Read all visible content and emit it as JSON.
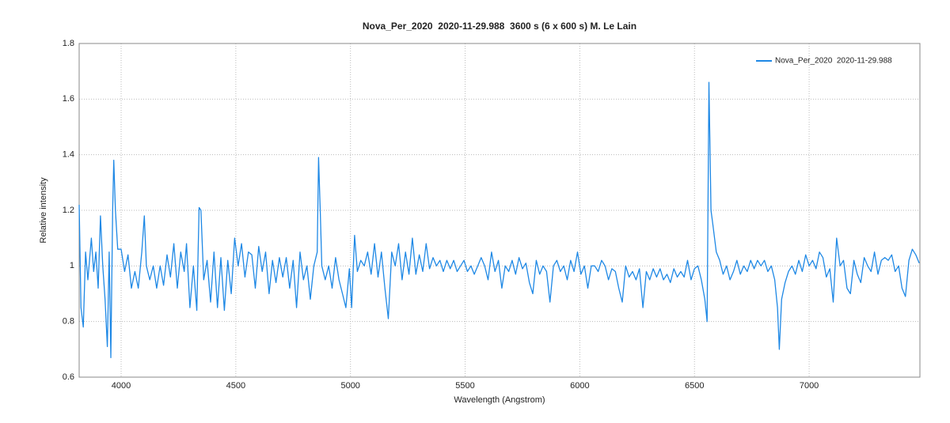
{
  "chart_data": {
    "type": "line",
    "title": "Nova_Per_2020  2020-11-29.988  3600 s (6 x 600 s) M. Le Lain",
    "x_label": "Wavelength (Angstrom)",
    "y_label": "Relative intensity",
    "xlim": [
      3817,
      7483
    ],
    "xticks": [
      4000,
      4500,
      5000,
      5500,
      6000,
      6500,
      7000
    ],
    "ylim": [
      0.6,
      1.8
    ],
    "yticks": [
      0.6,
      0.8,
      1,
      1.2,
      1.4,
      1.6,
      1.8
    ],
    "grid": true,
    "legend": "upper right",
    "x": [
      3817,
      3825,
      3835,
      3845,
      3855,
      3870,
      3880,
      3890,
      3900,
      3910,
      3920,
      3930,
      3940,
      3948,
      3955,
      3963,
      3968,
      3975,
      3985,
      4000,
      4015,
      4030,
      4045,
      4060,
      4075,
      4090,
      4101,
      4110,
      4125,
      4140,
      4155,
      4170,
      4185,
      4200,
      4215,
      4230,
      4245,
      4260,
      4275,
      4285,
      4300,
      4315,
      4330,
      4340,
      4348,
      4360,
      4375,
      4390,
      4405,
      4420,
      4435,
      4450,
      4465,
      4480,
      4495,
      4510,
      4525,
      4540,
      4555,
      4570,
      4585,
      4600,
      4615,
      4630,
      4645,
      4660,
      4675,
      4690,
      4705,
      4720,
      4735,
      4750,
      4765,
      4780,
      4795,
      4810,
      4825,
      4840,
      4855,
      4861,
      4868,
      4875,
      4890,
      4905,
      4920,
      4935,
      4950,
      4965,
      4980,
      4995,
      5005,
      5018,
      5030,
      5045,
      5060,
      5075,
      5090,
      5105,
      5120,
      5135,
      5150,
      5165,
      5180,
      5195,
      5210,
      5225,
      5240,
      5255,
      5270,
      5285,
      5300,
      5315,
      5330,
      5345,
      5360,
      5375,
      5390,
      5405,
      5420,
      5435,
      5450,
      5465,
      5480,
      5495,
      5510,
      5525,
      5540,
      5555,
      5570,
      5585,
      5600,
      5615,
      5630,
      5645,
      5660,
      5675,
      5690,
      5705,
      5720,
      5735,
      5750,
      5765,
      5780,
      5795,
      5810,
      5825,
      5840,
      5855,
      5870,
      5885,
      5900,
      5915,
      5930,
      5945,
      5960,
      5975,
      5990,
      6005,
      6020,
      6035,
      6050,
      6065,
      6080,
      6095,
      6110,
      6125,
      6140,
      6155,
      6170,
      6185,
      6200,
      6215,
      6230,
      6245,
      6260,
      6275,
      6290,
      6305,
      6320,
      6335,
      6350,
      6365,
      6380,
      6395,
      6410,
      6425,
      6440,
      6455,
      6470,
      6485,
      6500,
      6515,
      6530,
      6545,
      6555,
      6563,
      6572,
      6580,
      6595,
      6610,
      6625,
      6640,
      6655,
      6670,
      6685,
      6700,
      6715,
      6730,
      6745,
      6760,
      6775,
      6790,
      6805,
      6820,
      6835,
      6850,
      6862,
      6870,
      6880,
      6895,
      6910,
      6925,
      6940,
      6955,
      6970,
      6985,
      7000,
      7015,
      7030,
      7045,
      7060,
      7075,
      7090,
      7105,
      7120,
      7135,
      7150,
      7165,
      7180,
      7195,
      7210,
      7225,
      7240,
      7255,
      7270,
      7285,
      7300,
      7315,
      7330,
      7345,
      7360,
      7375,
      7390,
      7405,
      7420,
      7435,
      7450,
      7465,
      7480
    ],
    "series": [
      {
        "name": "Nova_Per_2020  2020-11-29.988",
        "color": "#1e88e5",
        "values": [
          1.22,
          0.85,
          0.78,
          1.05,
          0.95,
          1.1,
          0.98,
          1.05,
          0.92,
          1.18,
          1.0,
          0.88,
          0.71,
          1.05,
          0.67,
          1.2,
          1.38,
          1.2,
          1.06,
          1.06,
          0.98,
          1.04,
          0.92,
          0.98,
          0.92,
          1.05,
          1.18,
          1.0,
          0.95,
          1.0,
          0.92,
          1.0,
          0.93,
          1.04,
          0.96,
          1.08,
          0.92,
          1.05,
          0.98,
          1.08,
          0.85,
          1.0,
          0.84,
          1.21,
          1.2,
          0.95,
          1.02,
          0.87,
          1.05,
          0.85,
          1.03,
          0.84,
          1.02,
          0.9,
          1.1,
          1.0,
          1.08,
          0.96,
          1.05,
          1.04,
          0.92,
          1.07,
          0.98,
          1.05,
          0.9,
          1.02,
          0.94,
          1.03,
          0.96,
          1.03,
          0.92,
          1.02,
          0.85,
          1.05,
          0.95,
          1.0,
          0.88,
          1.0,
          1.05,
          1.39,
          1.2,
          1.0,
          0.95,
          1.0,
          0.92,
          1.03,
          0.95,
          0.9,
          0.85,
          0.99,
          0.85,
          1.11,
          0.98,
          1.02,
          1.0,
          1.05,
          0.97,
          1.08,
          0.96,
          1.05,
          0.92,
          0.81,
          1.05,
          1.0,
          1.08,
          0.95,
          1.05,
          0.97,
          1.1,
          0.97,
          1.04,
          0.98,
          1.08,
          0.99,
          1.03,
          1.0,
          1.02,
          0.98,
          1.02,
          0.99,
          1.02,
          0.98,
          1.0,
          1.02,
          0.98,
          1.0,
          0.97,
          1.0,
          1.03,
          1.0,
          0.95,
          1.05,
          0.98,
          1.02,
          0.92,
          1.0,
          0.98,
          1.02,
          0.97,
          1.03,
          0.99,
          1.01,
          0.94,
          0.9,
          1.02,
          0.97,
          1.0,
          0.98,
          0.87,
          1.0,
          1.02,
          0.98,
          1.0,
          0.95,
          1.02,
          0.98,
          1.05,
          0.97,
          1.0,
          0.92,
          1.0,
          1.0,
          0.98,
          1.02,
          1.0,
          0.95,
          0.99,
          0.98,
          0.92,
          0.87,
          1.0,
          0.96,
          0.98,
          0.95,
          0.99,
          0.85,
          0.98,
          0.95,
          0.99,
          0.96,
          0.99,
          0.95,
          0.97,
          0.94,
          0.99,
          0.96,
          0.98,
          0.96,
          1.02,
          0.95,
          0.99,
          1.0,
          0.95,
          0.88,
          0.8,
          1.66,
          1.2,
          1.15,
          1.05,
          1.02,
          0.97,
          1.0,
          0.95,
          0.98,
          1.02,
          0.97,
          1.0,
          0.98,
          1.02,
          0.99,
          1.02,
          1.0,
          1.02,
          0.98,
          1.0,
          0.95,
          0.85,
          0.7,
          0.88,
          0.94,
          0.98,
          1.0,
          0.97,
          1.02,
          0.98,
          1.04,
          1.0,
          1.02,
          0.99,
          1.05,
          1.03,
          0.96,
          0.99,
          0.87,
          1.1,
          1.0,
          1.02,
          0.92,
          0.9,
          1.02,
          0.97,
          0.94,
          1.03,
          1.0,
          0.98,
          1.05,
          0.97,
          1.02,
          1.03,
          1.02,
          1.04,
          0.98,
          1.0,
          0.92,
          0.89,
          1.02,
          1.06,
          1.04,
          1.01
        ]
      }
    ]
  }
}
